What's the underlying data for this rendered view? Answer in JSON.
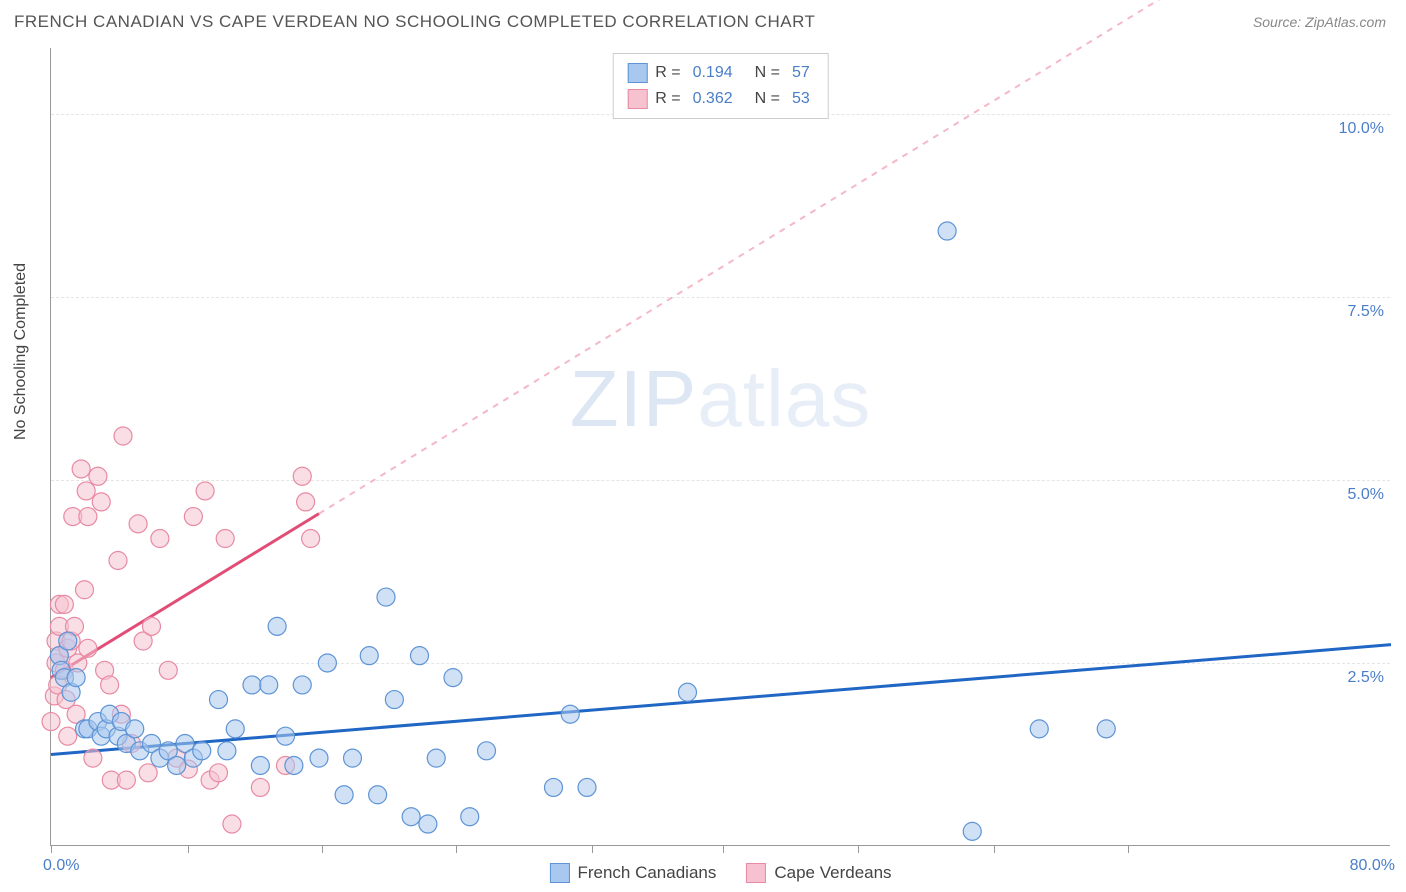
{
  "header": {
    "title": "FRENCH CANADIAN VS CAPE VERDEAN NO SCHOOLING COMPLETED CORRELATION CHART",
    "source": "Source: ZipAtlas.com"
  },
  "chart": {
    "type": "scatter",
    "y_axis_label": "No Schooling Completed",
    "xlim": [
      0,
      80
    ],
    "ylim": [
      0,
      10.9
    ],
    "x_min_label": "0.0%",
    "x_max_label": "80.0%",
    "y_ticks": [
      2.5,
      5.0,
      7.5,
      10.0
    ],
    "y_tick_labels": [
      "2.5%",
      "5.0%",
      "7.5%",
      "10.0%"
    ],
    "x_tick_positions": [
      0,
      8.2,
      16.2,
      24.2,
      32.3,
      40.1,
      48.2,
      56.3,
      64.3
    ],
    "background_color": "#ffffff",
    "grid_color": "#e5e5e5",
    "axis_color": "#999999",
    "marker_radius": 9,
    "marker_opacity": 0.55,
    "watermark": "ZIPatlas",
    "series": {
      "blue": {
        "name": "French Canadians",
        "R": "0.194",
        "N": "57",
        "fill_color": "#a9c8ef",
        "stroke_color": "#5e94d6",
        "trend_color": "#2066c4",
        "trend_dash_color": "#a9c8ef",
        "trend_solid_xmax": 80,
        "trend": {
          "x1": 0,
          "y1": 1.25,
          "x2": 80,
          "y2": 2.75
        },
        "points": [
          [
            0.5,
            2.6
          ],
          [
            0.6,
            2.4
          ],
          [
            0.8,
            2.3
          ],
          [
            1.0,
            2.8
          ],
          [
            1.2,
            2.1
          ],
          [
            1.5,
            2.3
          ],
          [
            2.0,
            1.6
          ],
          [
            2.2,
            1.6
          ],
          [
            2.8,
            1.7
          ],
          [
            3.0,
            1.5
          ],
          [
            3.3,
            1.6
          ],
          [
            3.5,
            1.8
          ],
          [
            4.0,
            1.5
          ],
          [
            4.2,
            1.7
          ],
          [
            4.5,
            1.4
          ],
          [
            5.0,
            1.6
          ],
          [
            5.3,
            1.3
          ],
          [
            6.0,
            1.4
          ],
          [
            6.5,
            1.2
          ],
          [
            7.0,
            1.3
          ],
          [
            7.5,
            1.1
          ],
          [
            8.0,
            1.4
          ],
          [
            8.5,
            1.2
          ],
          [
            9.0,
            1.3
          ],
          [
            10.0,
            2.0
          ],
          [
            10.5,
            1.3
          ],
          [
            11.0,
            1.6
          ],
          [
            12.0,
            2.2
          ],
          [
            12.5,
            1.1
          ],
          [
            13.0,
            2.2
          ],
          [
            13.5,
            3.0
          ],
          [
            14.0,
            1.5
          ],
          [
            14.5,
            1.1
          ],
          [
            15.0,
            2.2
          ],
          [
            16.0,
            1.2
          ],
          [
            16.5,
            2.5
          ],
          [
            17.5,
            0.7
          ],
          [
            18.0,
            1.2
          ],
          [
            19.0,
            2.6
          ],
          [
            19.5,
            0.7
          ],
          [
            20.0,
            3.4
          ],
          [
            20.5,
            2.0
          ],
          [
            21.5,
            0.4
          ],
          [
            22.0,
            2.6
          ],
          [
            22.5,
            0.3
          ],
          [
            23.0,
            1.2
          ],
          [
            24.0,
            2.3
          ],
          [
            25.0,
            0.4
          ],
          [
            26.0,
            1.3
          ],
          [
            30.0,
            0.8
          ],
          [
            31.0,
            1.8
          ],
          [
            32.0,
            0.8
          ],
          [
            38.0,
            2.1
          ],
          [
            53.5,
            8.4
          ],
          [
            55.0,
            0.2
          ],
          [
            59.0,
            1.6
          ],
          [
            63.0,
            1.6
          ]
        ]
      },
      "pink": {
        "name": "Cape Verdeans",
        "R": "0.362",
        "N": "53",
        "fill_color": "#f6c2cf",
        "stroke_color": "#e88aa3",
        "trend_color": "#e14d76",
        "trend_dash_color": "#f4b8c7",
        "trend_solid_xmax": 16,
        "trend": {
          "x1": 0,
          "y1": 2.3,
          "x2": 80,
          "y2": 13.5
        },
        "points": [
          [
            0.0,
            1.7
          ],
          [
            0.2,
            2.05
          ],
          [
            0.3,
            2.5
          ],
          [
            0.3,
            2.8
          ],
          [
            0.4,
            2.2
          ],
          [
            0.5,
            2.6
          ],
          [
            0.5,
            3.0
          ],
          [
            0.5,
            3.3
          ],
          [
            0.8,
            2.4
          ],
          [
            0.8,
            3.3
          ],
          [
            0.9,
            2.0
          ],
          [
            1.0,
            2.7
          ],
          [
            1.0,
            1.5
          ],
          [
            1.2,
            2.8
          ],
          [
            1.3,
            4.5
          ],
          [
            1.4,
            3.0
          ],
          [
            1.5,
            1.8
          ],
          [
            1.6,
            2.5
          ],
          [
            1.8,
            5.15
          ],
          [
            2.0,
            3.5
          ],
          [
            2.1,
            4.85
          ],
          [
            2.2,
            2.7
          ],
          [
            2.2,
            4.5
          ],
          [
            2.5,
            1.2
          ],
          [
            2.8,
            5.05
          ],
          [
            3.0,
            4.7
          ],
          [
            3.2,
            2.4
          ],
          [
            3.5,
            2.2
          ],
          [
            3.6,
            0.9
          ],
          [
            4.0,
            3.9
          ],
          [
            4.2,
            1.8
          ],
          [
            4.3,
            5.6
          ],
          [
            4.5,
            0.9
          ],
          [
            4.8,
            1.4
          ],
          [
            5.2,
            4.4
          ],
          [
            5.5,
            2.8
          ],
          [
            5.8,
            1.0
          ],
          [
            6.0,
            3.0
          ],
          [
            6.5,
            4.2
          ],
          [
            7.0,
            2.4
          ],
          [
            7.5,
            1.2
          ],
          [
            8.2,
            1.05
          ],
          [
            8.5,
            4.5
          ],
          [
            9.2,
            4.85
          ],
          [
            9.5,
            0.9
          ],
          [
            10.0,
            1.0
          ],
          [
            10.4,
            4.2
          ],
          [
            10.8,
            0.3
          ],
          [
            12.5,
            0.8
          ],
          [
            14.0,
            1.1
          ],
          [
            15.0,
            5.05
          ],
          [
            15.2,
            4.7
          ],
          [
            15.5,
            4.2
          ]
        ]
      }
    },
    "legend_bottom": [
      {
        "label": "French Canadians",
        "fill": "#a9c8ef",
        "stroke": "#5e94d6"
      },
      {
        "label": "Cape Verdeans",
        "fill": "#f6c2cf",
        "stroke": "#e88aa3"
      }
    ]
  }
}
